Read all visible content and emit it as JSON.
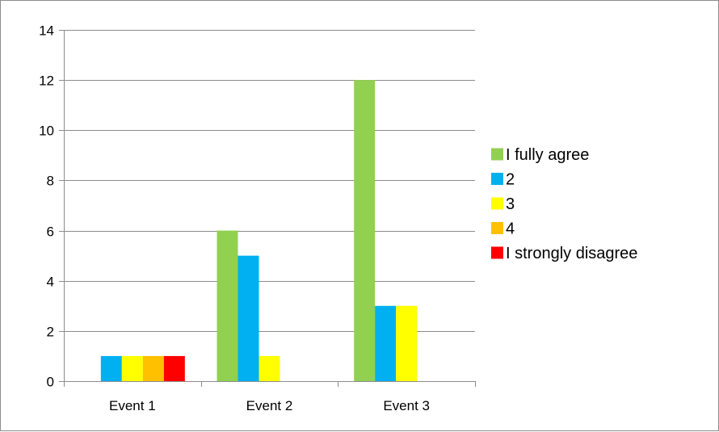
{
  "chart_data": {
    "type": "bar",
    "categories": [
      "Event 1",
      "Event 2",
      "Event 3"
    ],
    "series": [
      {
        "name": "I fully agree",
        "color": "#92D050",
        "values": [
          0,
          6,
          12
        ]
      },
      {
        "name": "2",
        "color": "#00B0F0",
        "values": [
          1,
          5,
          3
        ]
      },
      {
        "name": "3",
        "color": "#FFFF00",
        "values": [
          1,
          1,
          3
        ]
      },
      {
        "name": "4",
        "color": "#FFC000",
        "values": [
          1,
          0,
          0
        ]
      },
      {
        "name": "I strongly disagree",
        "color": "#FF0000",
        "values": [
          1,
          0,
          0
        ]
      }
    ],
    "ylim": [
      0,
      14
    ],
    "yticks": [
      0,
      2,
      4,
      6,
      8,
      10,
      12,
      14
    ],
    "grid": true,
    "legend": "right"
  }
}
